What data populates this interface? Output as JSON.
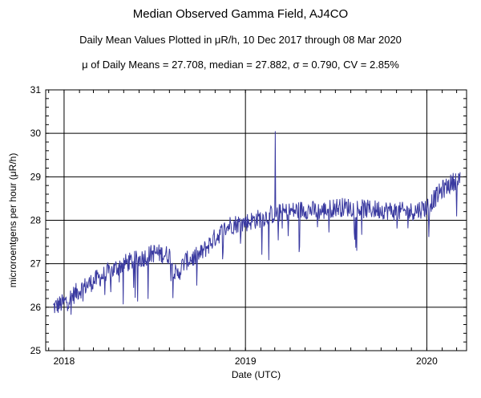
{
  "chart_data": {
    "type": "line",
    "title": "Median Observed Gamma Field, AJ4CO",
    "subtitle": "Daily Mean Values Plotted in μR/h, 10 Dec 2017 through 08 Mar 2020",
    "stats": "μ of Daily Means = 27.708,   median = 27.882,   σ = 0.790,   CV = 2.85%",
    "xlabel": "Date (UTC)",
    "ylabel": "microroentgens per hour (μR/h)",
    "xlim": [
      "2017-11-25",
      "2020-03-21"
    ],
    "ylim": [
      25,
      31
    ],
    "x_ticks": [
      {
        "label": "2018",
        "date": "2018-01-01"
      },
      {
        "label": "2019",
        "date": "2019-01-01"
      },
      {
        "label": "2020",
        "date": "2020-01-01"
      }
    ],
    "y_ticks": [
      "25",
      "26",
      "27",
      "28",
      "29",
      "30",
      "31"
    ],
    "grid": true,
    "line_color": "#3a3aa0",
    "series": [
      {
        "x": [
          "2017-12-10",
          "2018-01-01",
          "2018-02-01",
          "2018-03-01",
          "2018-04-01",
          "2018-05-01",
          "2018-06-01",
          "2018-07-01",
          "2018-08-01",
          "2018-08-15",
          "2018-09-01",
          "2018-10-01",
          "2018-11-01",
          "2018-12-01",
          "2019-01-01",
          "2019-02-01",
          "2019-03-01",
          "2019-04-01",
          "2019-05-01",
          "2019-06-01",
          "2019-07-01",
          "2019-08-01",
          "2019-09-01",
          "2019-10-01",
          "2019-11-01",
          "2019-12-01",
          "2020-01-01",
          "2020-02-01",
          "2020-03-08"
        ],
        "values": [
          26.0,
          26.1,
          26.4,
          26.6,
          26.8,
          27.0,
          27.1,
          27.25,
          27.2,
          26.7,
          27.05,
          27.2,
          27.6,
          27.9,
          27.95,
          28.05,
          28.15,
          28.2,
          28.25,
          28.2,
          28.3,
          28.3,
          28.25,
          28.25,
          28.2,
          28.2,
          28.3,
          28.7,
          29.0
        ]
      }
    ]
  }
}
